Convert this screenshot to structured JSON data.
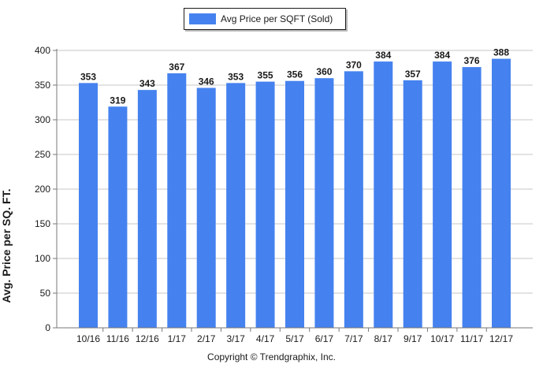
{
  "colors": {
    "bar": "#4582ef",
    "axis": "#777777",
    "grid": "#c7c7c7",
    "text": "#1a1a1a"
  },
  "legend": {
    "label": "Avg Price per SQFT (Sold)"
  },
  "footer": {
    "copyright": "Copyright © Trendgraphix, Inc."
  },
  "chart_data": {
    "type": "bar",
    "categories": [
      "10/16",
      "11/16",
      "12/16",
      "1/17",
      "2/17",
      "3/17",
      "4/17",
      "5/17",
      "6/17",
      "7/17",
      "8/17",
      "9/17",
      "10/17",
      "11/17",
      "12/17"
    ],
    "series": [
      {
        "name": "Avg Price per SQFT (Sold)",
        "values": [
          353,
          319,
          343,
          367,
          346,
          353,
          355,
          356,
          360,
          370,
          384,
          357,
          384,
          376,
          388
        ]
      }
    ],
    "ylabel": "Avg. Price per SQ. FT.",
    "xlabel": "",
    "ylim": [
      0,
      400
    ],
    "yticks": [
      0,
      50,
      100,
      150,
      200,
      250,
      300,
      350,
      400
    ],
    "grid": "horizontal",
    "legend_position": "top-center",
    "data_labels": true
  }
}
